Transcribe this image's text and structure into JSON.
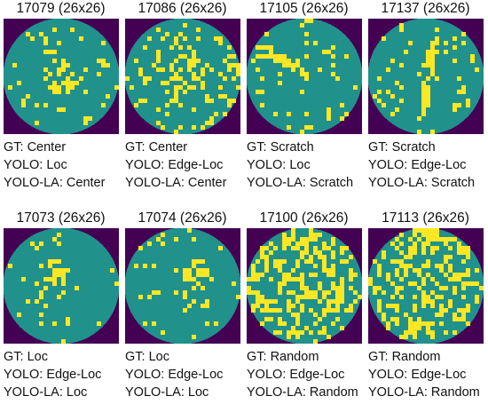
{
  "colors": {
    "background": "#440154",
    "wafer": "#21918c",
    "defect": "#fde725"
  },
  "panels": [
    {
      "title": "17079 (26x26)",
      "gt": "GT: Center",
      "yolo": "YOLO: Loc",
      "yolo_la": "YOLO-LA: Center",
      "pattern": "center",
      "seed": 11
    },
    {
      "title": "17086 (26x26)",
      "gt": "GT: Center",
      "yolo": "YOLO: Edge-Loc",
      "yolo_la": "YOLO-LA: Center",
      "pattern": "center2",
      "seed": 23
    },
    {
      "title": "17105 (26x26)",
      "gt": "GT: Scratch",
      "yolo": "YOLO: Loc",
      "yolo_la": "YOLO-LA: Scratch",
      "pattern": "scratch",
      "seed": 37
    },
    {
      "title": "17137 (26x26)",
      "gt": "GT: Scratch",
      "yolo": "YOLO: Edge-Loc",
      "yolo_la": "YOLO-LA: Scratch",
      "pattern": "scratch2",
      "seed": 41
    },
    {
      "title": "17073 (26x26)",
      "gt": "GT: Loc",
      "yolo": "YOLO: Edge-Loc",
      "yolo_la": "YOLO-LA: Loc",
      "pattern": "loc",
      "seed": 53
    },
    {
      "title": "17074 (26x26)",
      "gt": "GT: Loc",
      "yolo": "YOLO: Edge-Loc",
      "yolo_la": "YOLO-LA: Loc",
      "pattern": "loc2",
      "seed": 67
    },
    {
      "title": "17100 (26x26)",
      "gt": "GT: Random",
      "yolo": "YOLO: Edge-Loc",
      "yolo_la": "YOLO-LA: Random",
      "pattern": "random",
      "seed": 79
    },
    {
      "title": "17113 (26x26)",
      "gt": "GT: Random",
      "yolo": "YOLO: Edge-Loc",
      "yolo_la": "YOLO-LA: Random",
      "pattern": "random",
      "seed": 97
    }
  ]
}
